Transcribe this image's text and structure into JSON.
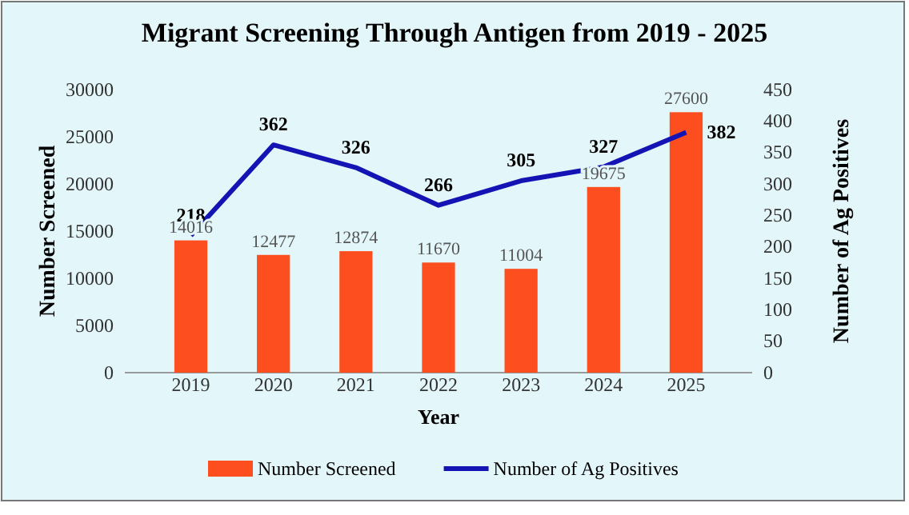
{
  "chart_data": {
    "type": "bar",
    "title": "Migrant Screening Through Antigen from 2019 - 2025",
    "xlabel": "Year",
    "ylabel": "Number  Screened",
    "y2label": "Number of Ag Positives",
    "categories": [
      "2019",
      "2020",
      "2021",
      "2022",
      "2023",
      "2024",
      "2025"
    ],
    "series": [
      {
        "name": "Number Screened",
        "color": "#fc4e1e",
        "values": [
          14016,
          12477,
          12874,
          11670,
          11004,
          19675,
          27600
        ]
      },
      {
        "name": "Number of Ag Positives",
        "type": "line",
        "axis": "y2",
        "color": "#1414b4",
        "values": [
          218,
          362,
          326,
          266,
          305,
          327,
          382
        ]
      }
    ],
    "ylim": [
      0,
      30000
    ],
    "yticks": [
      0,
      5000,
      10000,
      15000,
      20000,
      25000,
      30000
    ],
    "y2lim": [
      0,
      450
    ],
    "y2ticks": [
      0,
      50,
      100,
      150,
      200,
      250,
      300,
      350,
      400,
      450
    ],
    "data_labels": true,
    "legend": "bottom",
    "grid": false,
    "marker": "none"
  }
}
